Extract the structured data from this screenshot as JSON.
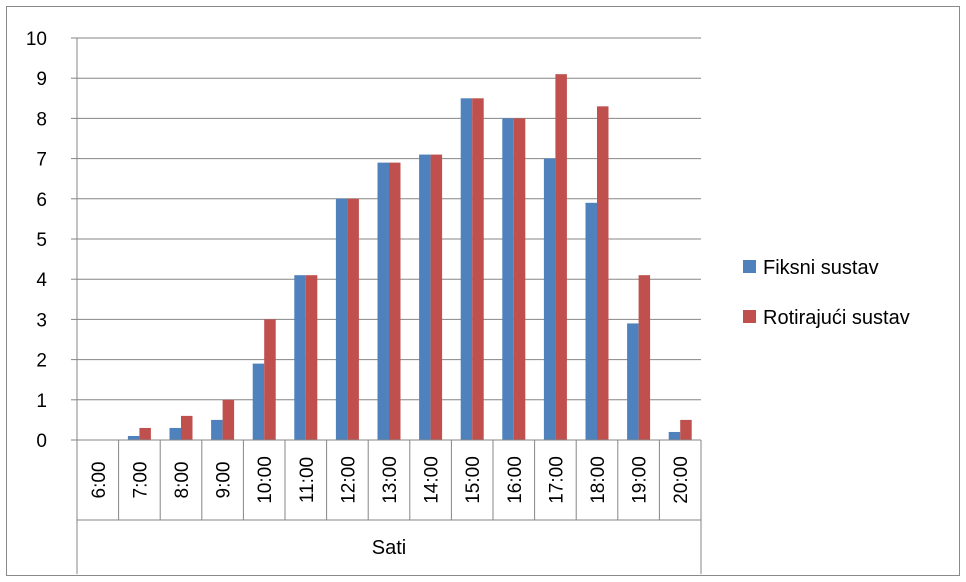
{
  "chart_data": {
    "type": "bar",
    "title": "",
    "xlabel": "Sati",
    "ylabel": "",
    "ylim": [
      0,
      10
    ],
    "yticks": [
      0,
      1,
      2,
      3,
      4,
      5,
      6,
      7,
      8,
      9,
      10
    ],
    "grid": true,
    "legend_position": "right",
    "categories": [
      "6:00",
      "7:00",
      "8:00",
      "9:00",
      "10:00",
      "11:00",
      "12:00",
      "13:00",
      "14:00",
      "15:00",
      "16:00",
      "17:00",
      "18:00",
      "19:00",
      "20:00"
    ],
    "series": [
      {
        "name": "Fiksni sustav",
        "color": "#4f81bd",
        "values": [
          0,
          0.1,
          0.3,
          0.5,
          1.9,
          4.1,
          6.0,
          6.9,
          7.1,
          8.5,
          8.0,
          7.0,
          5.9,
          2.9,
          0.2
        ]
      },
      {
        "name": "Rotirajući sustav",
        "color": "#c0504d",
        "values": [
          0,
          0.3,
          0.6,
          1.0,
          3.0,
          4.1,
          6.0,
          6.9,
          7.1,
          8.5,
          8.0,
          9.1,
          8.3,
          4.1,
          0.5
        ]
      }
    ]
  }
}
